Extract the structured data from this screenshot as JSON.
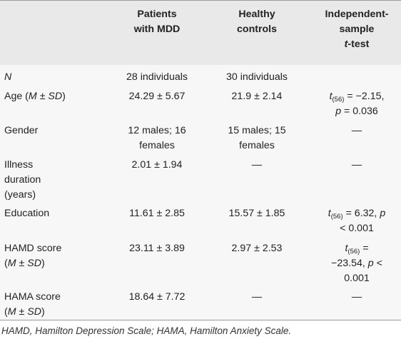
{
  "header": {
    "col1": "",
    "col2_line1": "Patients",
    "col2_line2": "with MDD",
    "col3_line1": "Healthy",
    "col3_line2": "controls",
    "col4_line1": "Independent-",
    "col4_line2": "sample",
    "col4_line3_italic": "t",
    "col4_line3_rest": "-test"
  },
  "rows": [
    {
      "label_lines": [
        "N"
      ],
      "mdd_lines": [
        "28 individuals"
      ],
      "hc_lines": [
        "30 individuals"
      ],
      "test_lines": [
        ""
      ]
    },
    {
      "label_lines": [
        "Age (M ± SD)"
      ],
      "mdd_lines": [
        "24.29 ± 5.67"
      ],
      "hc_lines": [
        "21.9 ± 2.14"
      ],
      "test_lines": [
        "t(56) = −2.15,",
        "p = 0.036"
      ]
    },
    {
      "label_lines": [
        "Gender"
      ],
      "mdd_lines": [
        "12 males; 16",
        "females"
      ],
      "hc_lines": [
        "15 males; 15",
        "females"
      ],
      "test_lines": [
        "—"
      ]
    },
    {
      "label_lines": [
        "Illness",
        "duration",
        "(years)"
      ],
      "mdd_lines": [
        "2.01 ± 1.94"
      ],
      "hc_lines": [
        "—"
      ],
      "test_lines": [
        "—"
      ]
    },
    {
      "label_lines": [
        "Education"
      ],
      "mdd_lines": [
        "11.61 ± 2.85"
      ],
      "hc_lines": [
        "15.57 ± 1.85"
      ],
      "test_lines": [
        "t(56) = 6.32, p",
        "< 0.001"
      ]
    },
    {
      "label_lines": [
        "HAMD score",
        "(M ± SD)"
      ],
      "mdd_lines": [
        "23.11 ± 3.89"
      ],
      "hc_lines": [
        "2.97 ± 2.53"
      ],
      "test_lines": [
        "t(56) =",
        "−23.54, p <",
        "0.001"
      ]
    },
    {
      "label_lines": [
        "HAMA score",
        "(M ± SD)"
      ],
      "mdd_lines": [
        "18.64 ± 7.72"
      ],
      "hc_lines": [
        "—"
      ],
      "test_lines": [
        "—"
      ]
    }
  ],
  "footnote": "HAMD, Hamilton Depression Scale; HAMA, Hamilton Anxiety Scale."
}
